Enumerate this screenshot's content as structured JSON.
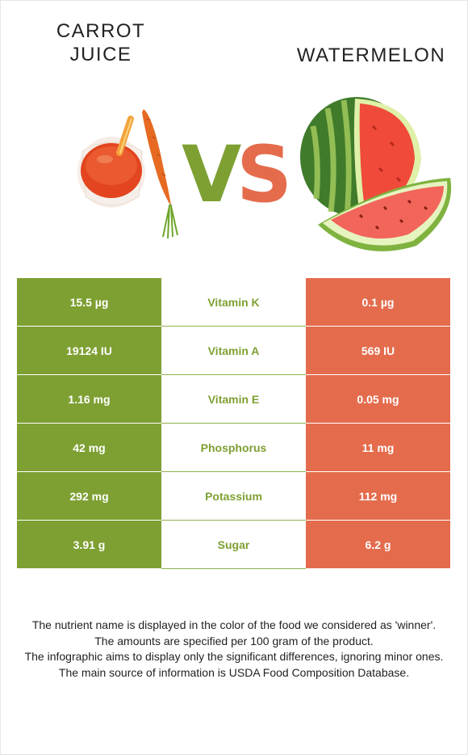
{
  "left_food": {
    "name": "Carrot juice",
    "color": "#7ea033"
  },
  "right_food": {
    "name": "Watermelon",
    "color": "#e46c4d"
  },
  "vs": {
    "v": "V",
    "s": "S"
  },
  "rows": [
    {
      "nutrient": "Vitamin K",
      "left": "15.5 µg",
      "right": "0.1 µg",
      "winner": "left"
    },
    {
      "nutrient": "Vitamin A",
      "left": "19124 IU",
      "right": "569 IU",
      "winner": "left"
    },
    {
      "nutrient": "Vitamin E",
      "left": "1.16 mg",
      "right": "0.05 mg",
      "winner": "left"
    },
    {
      "nutrient": "Phosphorus",
      "left": "42 mg",
      "right": "11 mg",
      "winner": "left"
    },
    {
      "nutrient": "Potassium",
      "left": "292 mg",
      "right": "112 mg",
      "winner": "left"
    },
    {
      "nutrient": "Sugar",
      "left": "3.91 g",
      "right": "6.2 g",
      "winner": "left"
    }
  ],
  "footnotes": [
    "The nutrient name is displayed in the color of the food we considered as 'winner'.",
    "The amounts are specified per 100 gram of the product.",
    "The infographic aims to display only the significant differences, ignoring minor ones.",
    "The main source of information is USDA Food Composition Database."
  ]
}
